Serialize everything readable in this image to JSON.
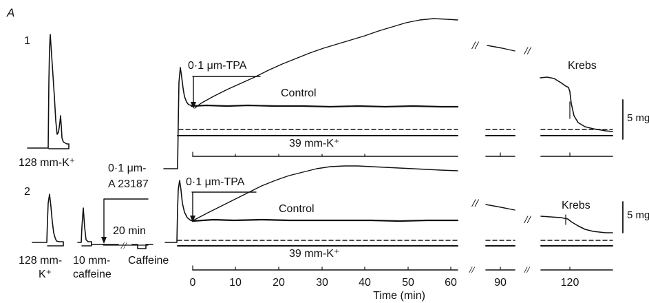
{
  "figure": {
    "panel_letter": "A",
    "row1": {
      "number": "1",
      "k_label": "128 mm-K⁺",
      "tpa_label": "0·1 μm-TPA",
      "control_label": "Control",
      "k39_label": "39 mm-K⁺",
      "krebs_label": "Krebs",
      "scale_label": "5 mg"
    },
    "row2": {
      "number": "2",
      "k_label_line1": "128 mm-",
      "k_label_line2": "K⁺",
      "caff_label_line1": "10 mm-",
      "caff_label_line2": "caffeine",
      "caffeine_label": "Caffeine",
      "a23187_line1": "0·1 μm-",
      "a23187_line2": "A 23187",
      "time_scale": "20 min",
      "tpa_label": "0·1 μm-TPA",
      "control_label": "Control",
      "k39_label": "39 mm-K⁺",
      "krebs_label": "Krebs",
      "scale_label": "5 mg"
    },
    "axis": {
      "ticks": [
        "0",
        "10",
        "20",
        "30",
        "40",
        "50",
        "60",
        "90",
        "120"
      ],
      "title": "Time (min)"
    },
    "break_mark": "//"
  }
}
